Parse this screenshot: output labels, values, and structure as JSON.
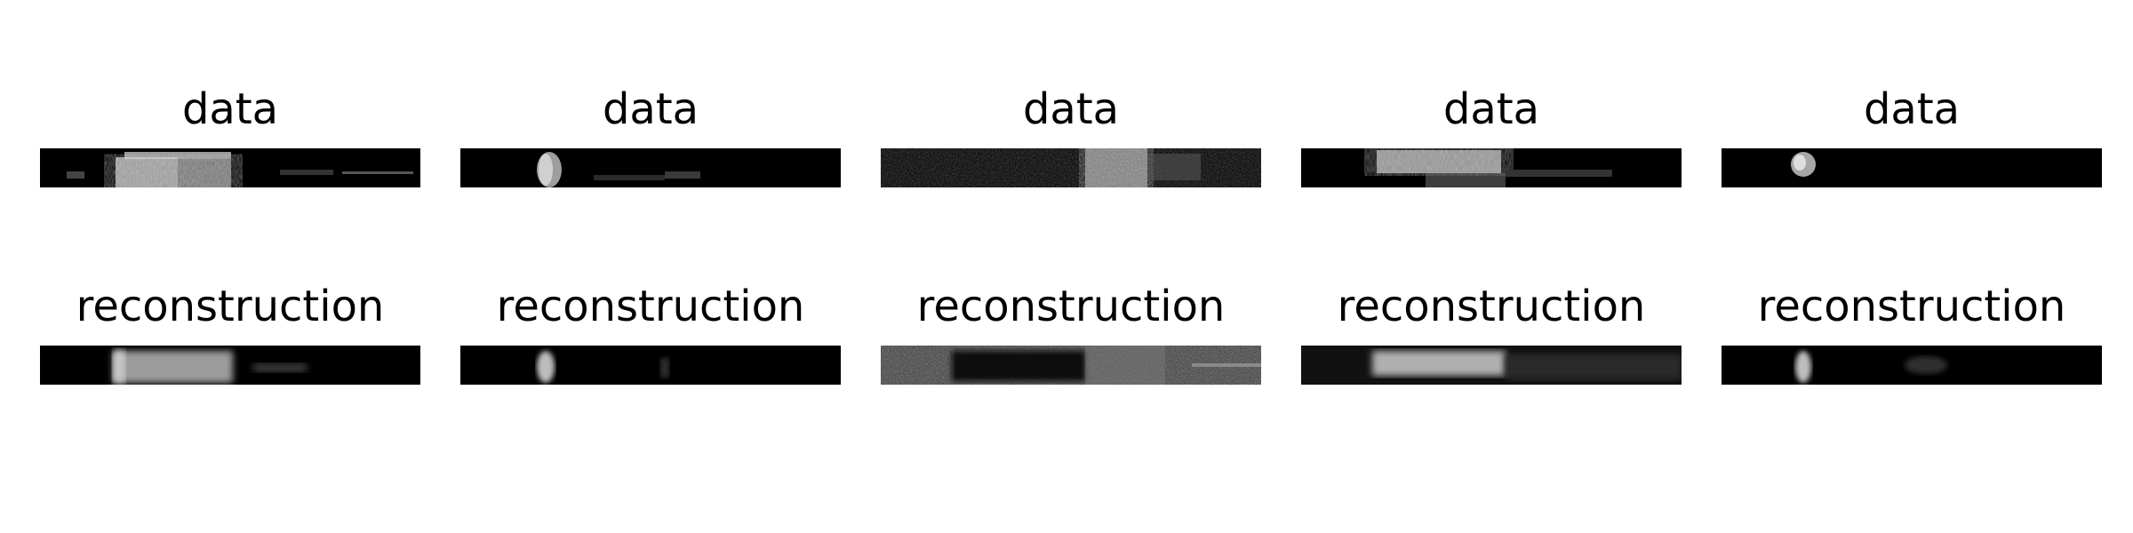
{
  "rows": [
    {
      "title": "data",
      "panels": [
        {
          "title": "data",
          "image": "data-strip-1"
        },
        {
          "title": "data",
          "image": "data-strip-2"
        },
        {
          "title": "data",
          "image": "data-strip-3"
        },
        {
          "title": "data",
          "image": "data-strip-4"
        },
        {
          "title": "data",
          "image": "data-strip-5"
        }
      ]
    },
    {
      "title": "reconstruction",
      "panels": [
        {
          "title": "reconstruction",
          "image": "reconstruction-strip-1"
        },
        {
          "title": "reconstruction",
          "image": "reconstruction-strip-2"
        },
        {
          "title": "reconstruction",
          "image": "reconstruction-strip-3"
        },
        {
          "title": "reconstruction",
          "image": "reconstruction-strip-4"
        },
        {
          "title": "reconstruction",
          "image": "reconstruction-strip-5"
        }
      ]
    }
  ],
  "colors": {
    "background": "#ffffff",
    "image_background": "#000000",
    "text": "#000000"
  }
}
